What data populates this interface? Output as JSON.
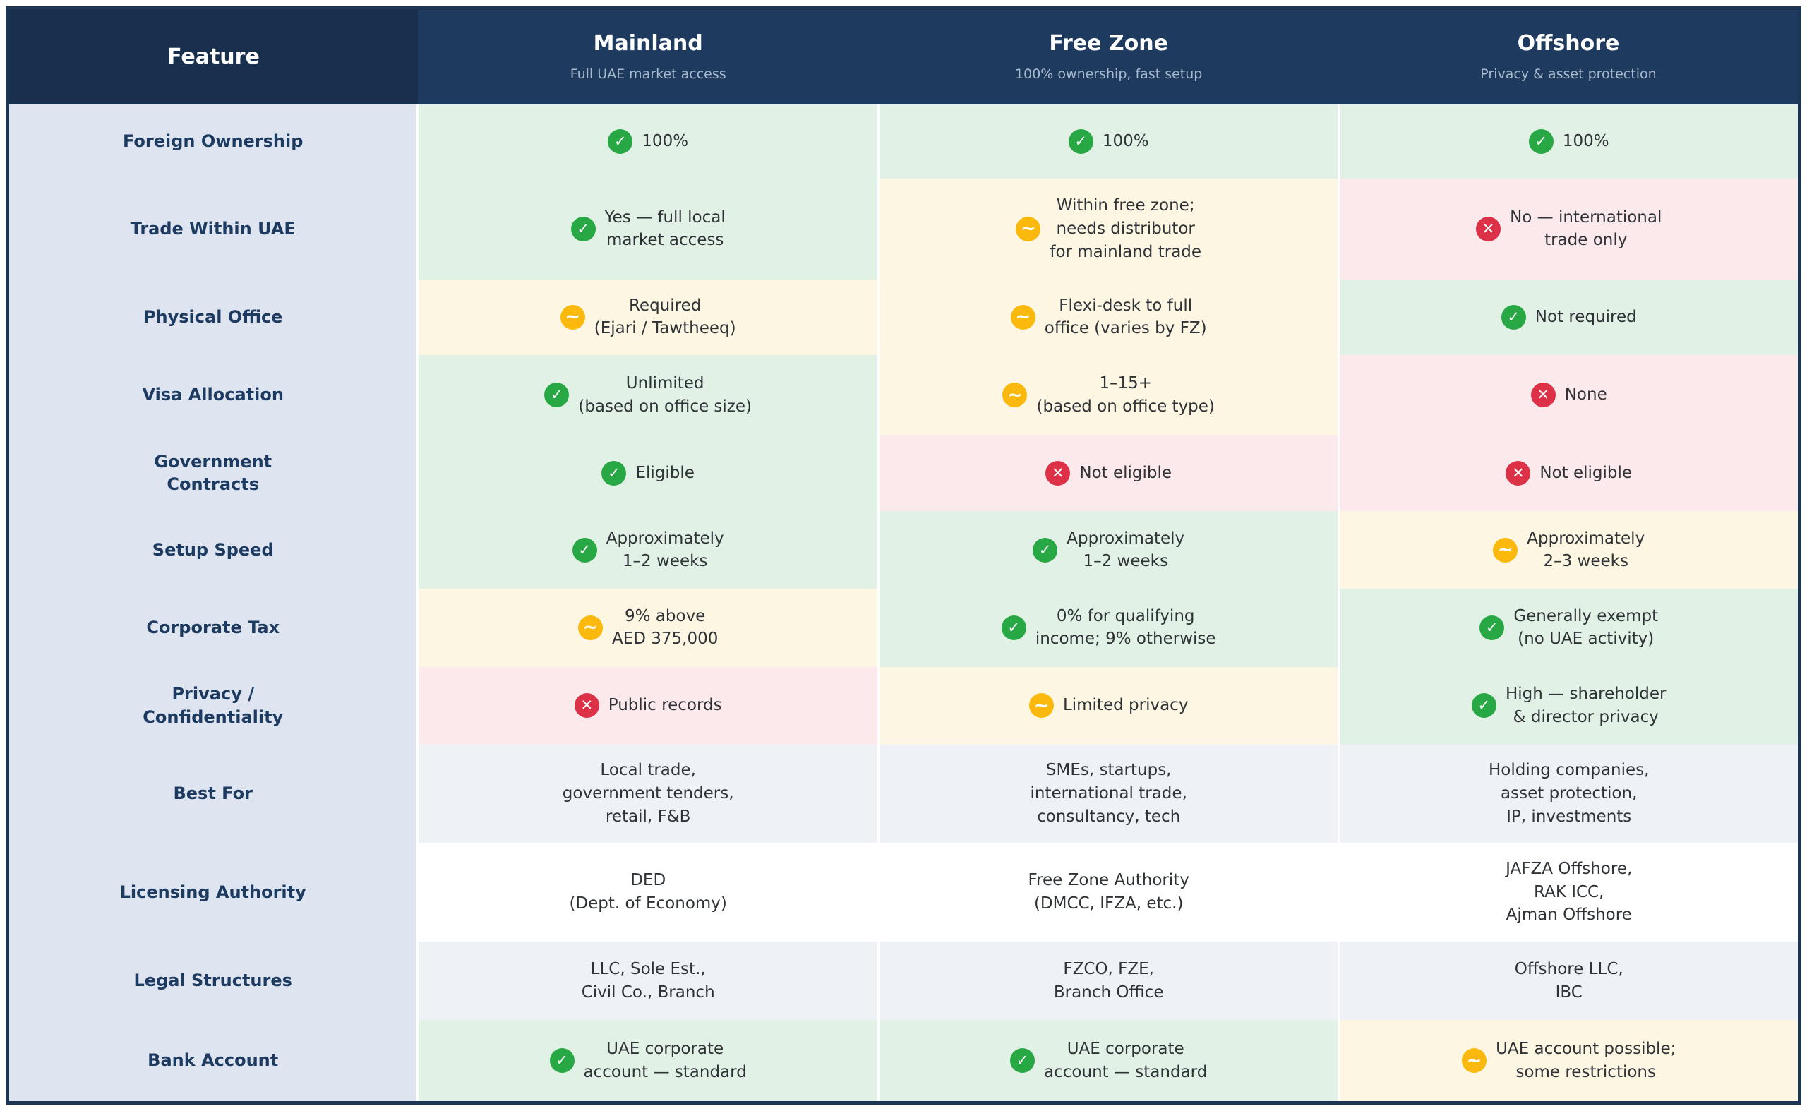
{
  "chart_data": {
    "type": "table",
    "corner_header": "Feature",
    "columns": [
      {
        "title": "Mainland",
        "subtitle": "Full UAE market access"
      },
      {
        "title": "Free Zone",
        "subtitle": "100% ownership, fast setup"
      },
      {
        "title": "Offshore",
        "subtitle": "Privacy & asset protection"
      }
    ],
    "rows": [
      {
        "feature_lines": [
          "Foreign Ownership"
        ],
        "cells": [
          {
            "tone": "green",
            "icon": "yes",
            "lines": [
              "100%"
            ]
          },
          {
            "tone": "green",
            "icon": "yes",
            "lines": [
              "100%"
            ]
          },
          {
            "tone": "green",
            "icon": "yes",
            "lines": [
              "100%"
            ]
          }
        ]
      },
      {
        "feature_lines": [
          "Trade Within UAE"
        ],
        "cells": [
          {
            "tone": "green",
            "icon": "yes",
            "lines": [
              "Yes — full local",
              "market access"
            ]
          },
          {
            "tone": "yellow",
            "icon": "partial",
            "lines": [
              "Within free zone;",
              "needs distributor",
              "for mainland trade"
            ]
          },
          {
            "tone": "pink",
            "icon": "no",
            "lines": [
              "No — international",
              "trade only"
            ]
          }
        ]
      },
      {
        "feature_lines": [
          "Physical Office"
        ],
        "cells": [
          {
            "tone": "yellow",
            "icon": "partial",
            "lines": [
              "Required",
              "(Ejari / Tawtheeq)"
            ]
          },
          {
            "tone": "yellow",
            "icon": "partial",
            "lines": [
              "Flexi-desk to full",
              "office (varies by FZ)"
            ]
          },
          {
            "tone": "green",
            "icon": "yes",
            "lines": [
              "Not required"
            ]
          }
        ]
      },
      {
        "feature_lines": [
          "Visa Allocation"
        ],
        "cells": [
          {
            "tone": "green",
            "icon": "yes",
            "lines": [
              "Unlimited",
              "(based on office size)"
            ]
          },
          {
            "tone": "yellow",
            "icon": "partial",
            "lines": [
              "1–15+",
              "(based on office type)"
            ]
          },
          {
            "tone": "pink",
            "icon": "no",
            "lines": [
              "None"
            ]
          }
        ]
      },
      {
        "feature_lines": [
          "Government",
          "Contracts"
        ],
        "cells": [
          {
            "tone": "green",
            "icon": "yes",
            "lines": [
              "Eligible"
            ]
          },
          {
            "tone": "pink",
            "icon": "no",
            "lines": [
              "Not eligible"
            ]
          },
          {
            "tone": "pink",
            "icon": "no",
            "lines": [
              "Not eligible"
            ]
          }
        ]
      },
      {
        "feature_lines": [
          "Setup Speed"
        ],
        "cells": [
          {
            "tone": "green",
            "icon": "yes",
            "lines": [
              "Approximately",
              "1–2 weeks"
            ]
          },
          {
            "tone": "green",
            "icon": "yes",
            "lines": [
              "Approximately",
              "1–2 weeks"
            ]
          },
          {
            "tone": "yellow",
            "icon": "partial",
            "lines": [
              "Approximately",
              "2–3 weeks"
            ]
          }
        ]
      },
      {
        "feature_lines": [
          "Corporate Tax"
        ],
        "cells": [
          {
            "tone": "yellow",
            "icon": "partial",
            "lines": [
              "9% above",
              "AED 375,000"
            ]
          },
          {
            "tone": "green",
            "icon": "yes",
            "lines": [
              "0% for qualifying",
              "income; 9% otherwise"
            ]
          },
          {
            "tone": "green",
            "icon": "yes",
            "lines": [
              "Generally exempt",
              "(no UAE activity)"
            ]
          }
        ]
      },
      {
        "feature_lines": [
          "Privacy /",
          "Confidentiality"
        ],
        "cells": [
          {
            "tone": "pink",
            "icon": "no",
            "lines": [
              "Public records"
            ]
          },
          {
            "tone": "yellow",
            "icon": "partial",
            "lines": [
              "Limited privacy"
            ]
          },
          {
            "tone": "green",
            "icon": "yes",
            "lines": [
              "High — shareholder",
              "& director privacy"
            ]
          }
        ]
      },
      {
        "feature_lines": [
          "Best For"
        ],
        "cells": [
          {
            "tone": "muted",
            "icon": null,
            "lines": [
              "Local trade,",
              "government tenders,",
              "retail, F&B"
            ]
          },
          {
            "tone": "muted",
            "icon": null,
            "lines": [
              "SMEs, startups,",
              "international trade,",
              "consultancy, tech"
            ]
          },
          {
            "tone": "muted",
            "icon": null,
            "lines": [
              "Holding companies,",
              "asset protection,",
              "IP, investments"
            ]
          }
        ]
      },
      {
        "feature_lines": [
          "Licensing Authority"
        ],
        "cells": [
          {
            "tone": "white",
            "icon": null,
            "lines": [
              "DED",
              "(Dept. of Economy)"
            ]
          },
          {
            "tone": "white",
            "icon": null,
            "lines": [
              "Free Zone Authority",
              "(DMCC, IFZA, etc.)"
            ]
          },
          {
            "tone": "white",
            "icon": null,
            "lines": [
              "JAFZA Offshore,",
              "RAK ICC,",
              "Ajman Offshore"
            ]
          }
        ]
      },
      {
        "feature_lines": [
          "Legal Structures"
        ],
        "cells": [
          {
            "tone": "muted",
            "icon": null,
            "lines": [
              "LLC, Sole Est.,",
              "Civil Co., Branch"
            ]
          },
          {
            "tone": "muted",
            "icon": null,
            "lines": [
              "FZCO, FZE,",
              "Branch Office"
            ]
          },
          {
            "tone": "muted",
            "icon": null,
            "lines": [
              "Offshore LLC,",
              "IBC"
            ]
          }
        ]
      },
      {
        "feature_lines": [
          "Bank Account"
        ],
        "cells": [
          {
            "tone": "green",
            "icon": "yes",
            "lines": [
              "UAE corporate",
              "account — standard"
            ]
          },
          {
            "tone": "green",
            "icon": "yes",
            "lines": [
              "UAE corporate",
              "account — standard"
            ]
          },
          {
            "tone": "yellow",
            "icon": "partial",
            "lines": [
              "UAE account possible;",
              "some restrictions"
            ]
          }
        ]
      }
    ]
  },
  "icon_glyphs": {
    "yes": "✓",
    "partial": "~",
    "no": "✕"
  },
  "colors": {
    "header_feature_bg": "#18304d",
    "header_option_bg": "#1e3a5f",
    "header_subtitle_text": "#a9bacd",
    "table_border": "#1c3552",
    "feature_column_bg": "#dee5f0",
    "feature_text": "#1d3a60",
    "cell_text": "#2f3337",
    "tone_green_bg": "#e2f1e5",
    "tone_yellow_bg": "#fdf6e2",
    "tone_pink_bg": "#fce9ec",
    "tone_muted_bg": "#eef1f6",
    "tone_white_bg": "#ffffff",
    "status_green": "#28a745",
    "status_amber": "#fbb90d",
    "status_red": "#dc3147"
  }
}
